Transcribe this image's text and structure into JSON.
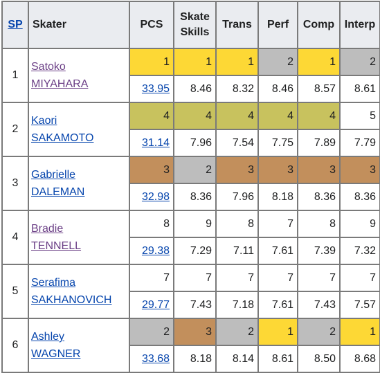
{
  "headers": {
    "sp": "SP",
    "skater": "Skater",
    "pcs": "PCS",
    "skate_skills_1": "Skate",
    "skate_skills_2": "Skills",
    "trans": "Trans",
    "perf": "Perf",
    "comp": "Comp",
    "interp": "Interp"
  },
  "skaters": [
    {
      "rank": "1",
      "first": "Satoko",
      "last": "MIYAHARA",
      "visited": true,
      "ranks": {
        "pcs": "1",
        "ss": "1",
        "tr": "1",
        "pe": "2",
        "co": "1",
        "in": "2"
      },
      "scores": {
        "pcs": "33.95",
        "ss": "8.46",
        "tr": "8.32",
        "pe": "8.46",
        "co": "8.57",
        "in": "8.61"
      }
    },
    {
      "rank": "2",
      "first": "Kaori",
      "last": "SAKAMOTO",
      "visited": false,
      "ranks": {
        "pcs": "4",
        "ss": "4",
        "tr": "4",
        "pe": "4",
        "co": "4",
        "in": "5"
      },
      "scores": {
        "pcs": "31.14",
        "ss": "7.96",
        "tr": "7.54",
        "pe": "7.75",
        "co": "7.89",
        "in": "7.79"
      }
    },
    {
      "rank": "3",
      "first": "Gabrielle",
      "last": "DALEMAN",
      "visited": false,
      "ranks": {
        "pcs": "3",
        "ss": "2",
        "tr": "3",
        "pe": "3",
        "co": "3",
        "in": "3"
      },
      "scores": {
        "pcs": "32.98",
        "ss": "8.36",
        "tr": "7.96",
        "pe": "8.18",
        "co": "8.36",
        "in": "8.36"
      }
    },
    {
      "rank": "4",
      "first": "Bradie",
      "last": "TENNELL",
      "visited": true,
      "ranks": {
        "pcs": "8",
        "ss": "9",
        "tr": "8",
        "pe": "7",
        "co": "8",
        "in": "9"
      },
      "scores": {
        "pcs": "29.38",
        "ss": "7.29",
        "tr": "7.11",
        "pe": "7.61",
        "co": "7.39",
        "in": "7.32"
      }
    },
    {
      "rank": "5",
      "first": "Serafima",
      "last": "SAKHANOVICH",
      "visited": false,
      "ranks": {
        "pcs": "7",
        "ss": "7",
        "tr": "7",
        "pe": "7",
        "co": "7",
        "in": "7"
      },
      "scores": {
        "pcs": "29.77",
        "ss": "7.43",
        "tr": "7.18",
        "pe": "7.61",
        "co": "7.43",
        "in": "7.57"
      }
    },
    {
      "rank": "6",
      "first": "Ashley",
      "last": "WAGNER",
      "visited": false,
      "ranks": {
        "pcs": "2",
        "ss": "3",
        "tr": "2",
        "pe": "1",
        "co": "2",
        "in": "1"
      },
      "scores": {
        "pcs": "33.68",
        "ss": "8.18",
        "tr": "8.14",
        "pe": "8.61",
        "co": "8.50",
        "in": "8.68"
      }
    }
  ],
  "colors": {
    "gold": "#fdd835",
    "silver": "#bdbdbd",
    "bronze": "#c28f5c",
    "olive": "#c8c25e",
    "link": "#0645ad",
    "visited_link": "#6b3f86",
    "header_bg": "#eaecf0"
  }
}
